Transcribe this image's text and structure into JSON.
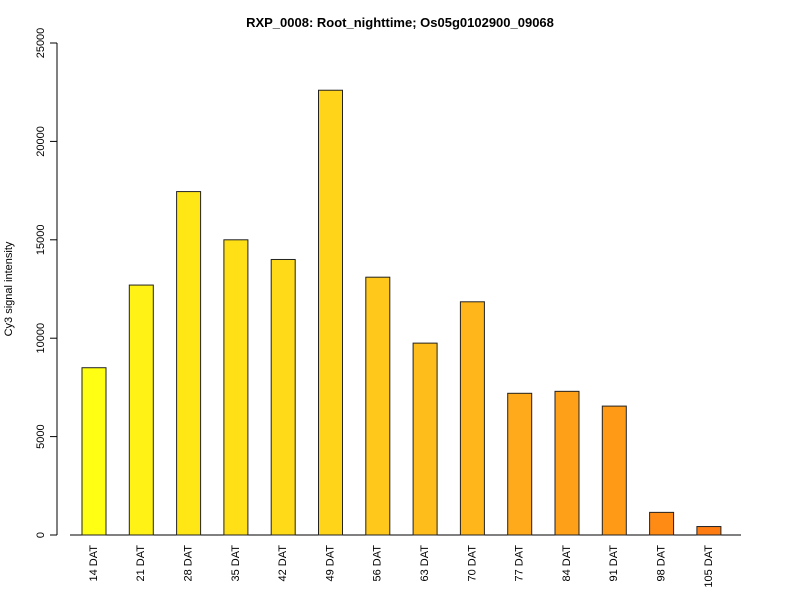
{
  "chart_data": {
    "type": "bar",
    "title": "RXP_0008: Root_nighttime; Os05g0102900_09068",
    "xlabel": "",
    "ylabel": "Cy3 signal intensity",
    "ylim": [
      0,
      25000
    ],
    "yticks": [
      0,
      5000,
      10000,
      15000,
      20000,
      25000
    ],
    "categories": [
      "14 DAT",
      "21 DAT",
      "28 DAT",
      "35 DAT",
      "42 DAT",
      "49 DAT",
      "56 DAT",
      "63 DAT",
      "70 DAT",
      "77 DAT",
      "84 DAT",
      "91 DAT",
      "98 DAT",
      "105 DAT"
    ],
    "values": [
      8500,
      12700,
      17450,
      15000,
      14000,
      22600,
      13100,
      9750,
      11850,
      7200,
      7300,
      6550,
      1150,
      430
    ],
    "colors": [
      "#FFFF14",
      "#FFF214",
      "#FFE716",
      "#FFE017",
      "#FFDA18",
      "#FFD419",
      "#FFC81A",
      "#FFBD1B",
      "#FFB61B",
      "#FFAA1A",
      "#FFA019",
      "#FF9A17",
      "#FF8A14",
      "#FF7C12"
    ],
    "grid": false,
    "legend": "none"
  }
}
